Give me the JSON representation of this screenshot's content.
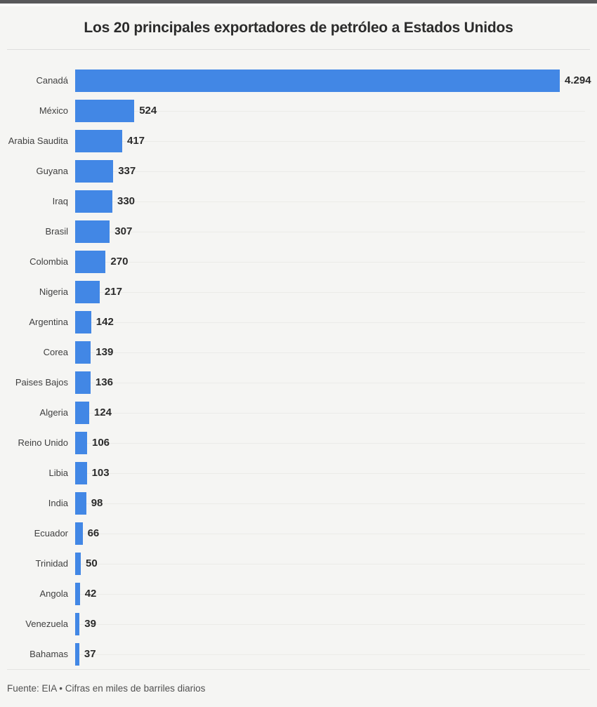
{
  "page": {
    "background": "#f5f5f3",
    "top_strip_color": "#58585a"
  },
  "header": {
    "title": "Los 20 principales exportadores de petróleo a Estados Unidos"
  },
  "footer": {
    "text": "Fuente: EIA • Cifras en miles de barriles diarios"
  },
  "chart_data": {
    "type": "bar",
    "orientation": "horizontal",
    "title": "Los 20 principales exportadores de petróleo a Estados Unidos",
    "source": "EIA",
    "unit_note": "Cifras en miles de barriles diarios",
    "bar_color": "#4287e5",
    "grid": true,
    "xlim": [
      0,
      4294
    ],
    "categories": [
      "Canadá",
      "México",
      "Arabia Saudita",
      "Guyana",
      "Iraq",
      "Brasil",
      "Colombia",
      "Nigeria",
      "Argentina",
      "Corea",
      "Paises Bajos",
      "Algeria",
      "Reino Unido",
      "Libia",
      "India",
      "Ecuador",
      "Trinidad",
      "Angola",
      "Venezuela",
      "Bahamas"
    ],
    "values": [
      4294,
      524,
      417,
      337,
      330,
      307,
      270,
      217,
      142,
      139,
      136,
      124,
      106,
      103,
      98,
      66,
      50,
      42,
      39,
      37
    ],
    "value_labels": [
      "4.294",
      "524",
      "417",
      "337",
      "330",
      "307",
      "270",
      "217",
      "142",
      "139",
      "136",
      "124",
      "106",
      "103",
      "98",
      "66",
      "50",
      "42",
      "39",
      "37"
    ]
  }
}
